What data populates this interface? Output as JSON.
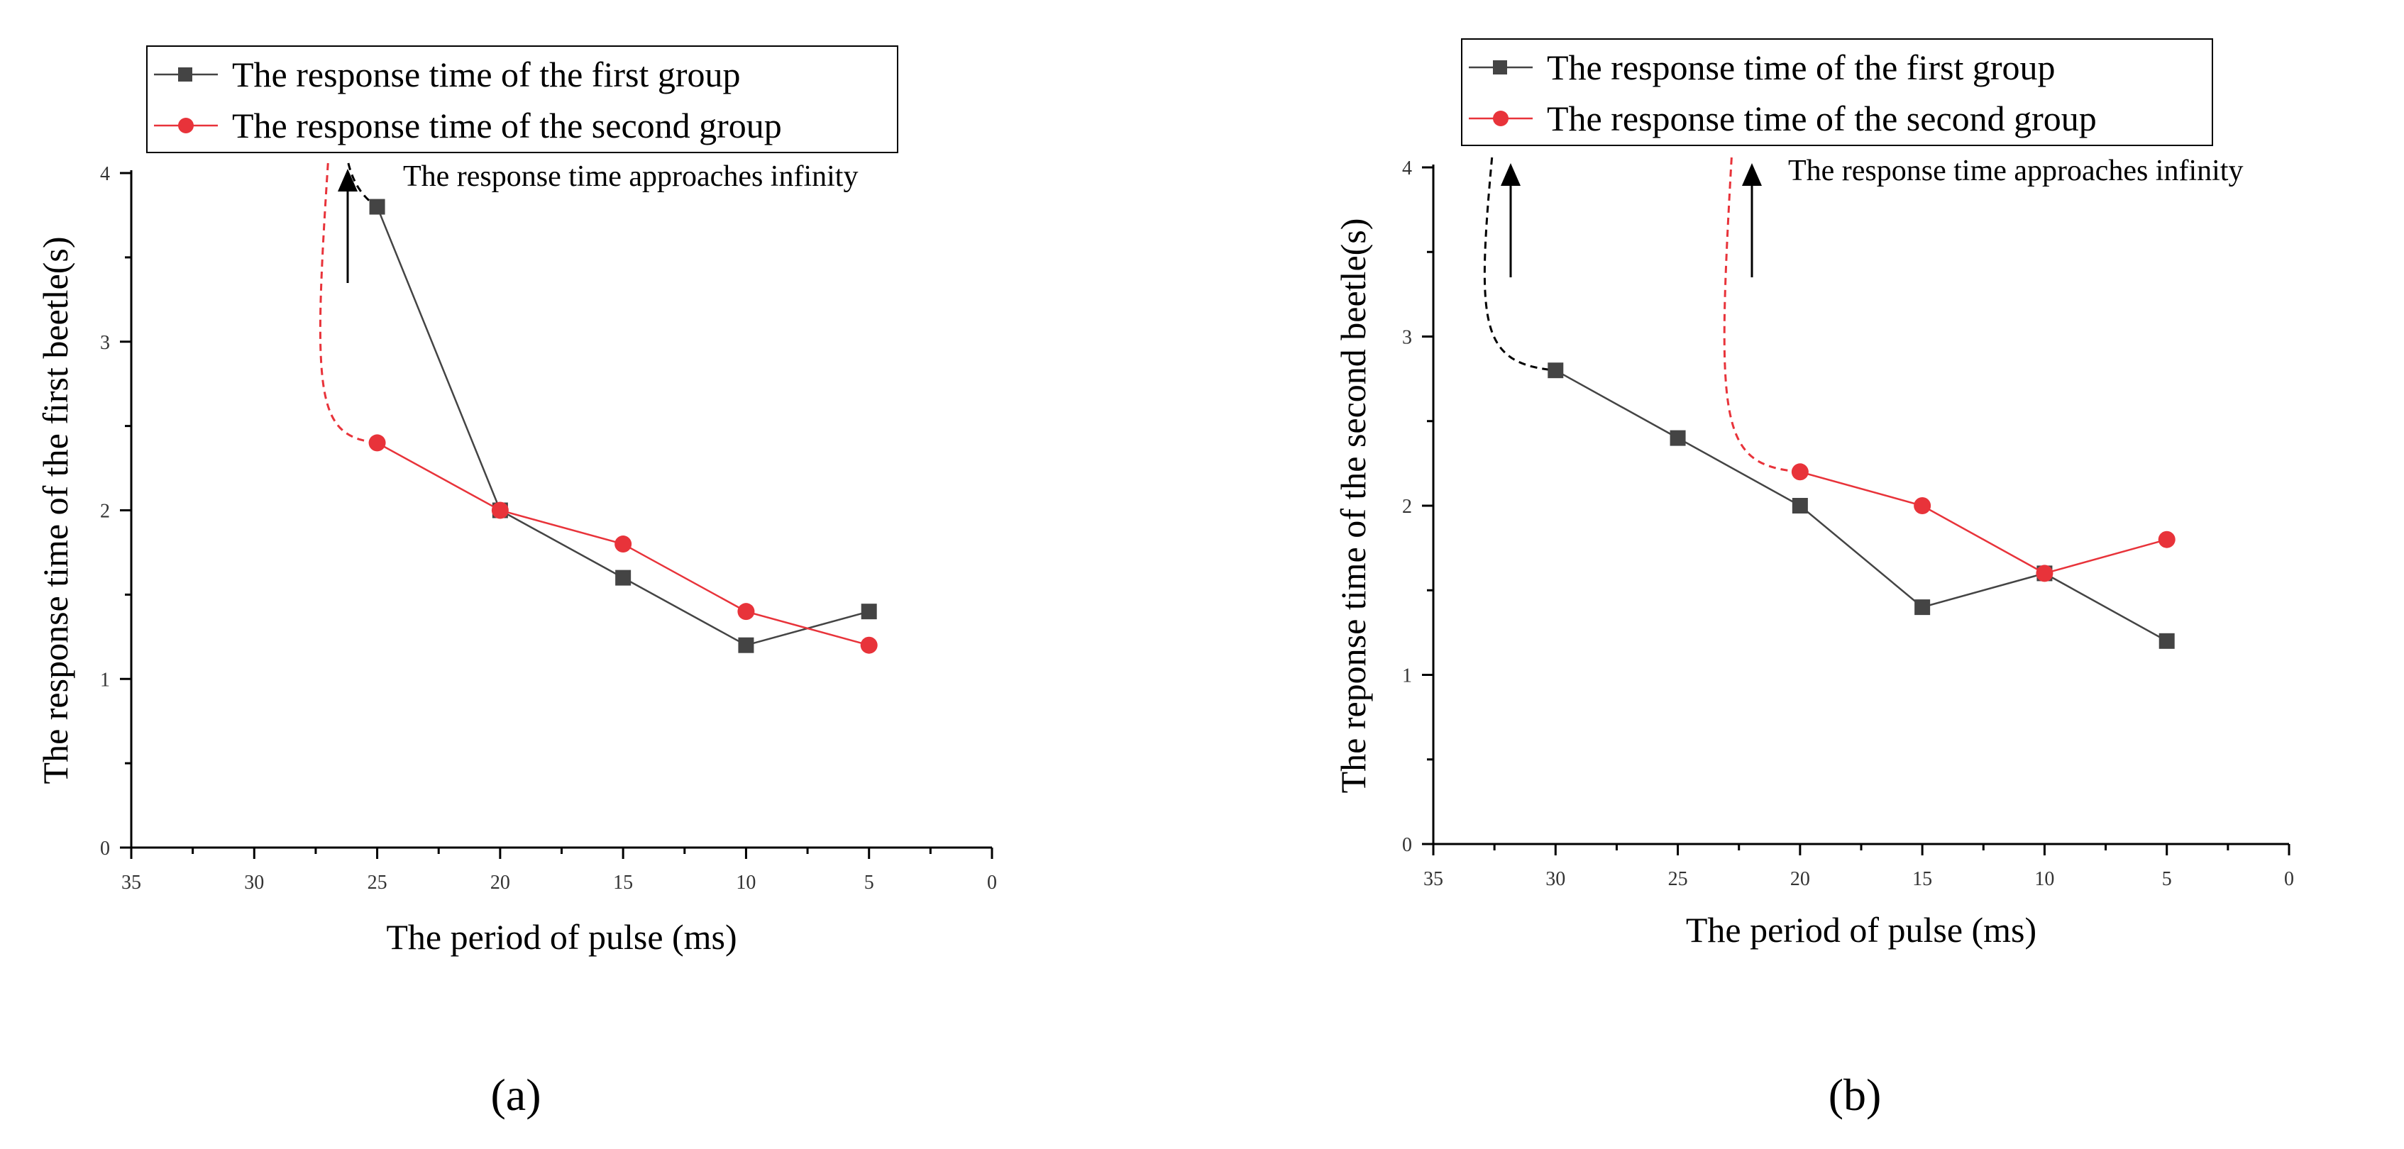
{
  "chart_data": [
    {
      "type": "line",
      "panel_label": "(a)",
      "xlabel": "The period of pulse (ms)",
      "ylabel": "The response time of the first beetle(s)",
      "xlim": [
        35,
        0
      ],
      "ylim": [
        0,
        4
      ],
      "xticks": [
        35,
        30,
        25,
        20,
        15,
        10,
        5,
        0
      ],
      "yticks": [
        0,
        1,
        2,
        3,
        4
      ],
      "legend": [
        "The response time of the first group",
        "The response time of the second group"
      ],
      "annotation": "The response time approaches infinity",
      "series": [
        {
          "name": "The response time of the first group",
          "color": "#444444",
          "marker": "square",
          "x": [
            25,
            20,
            15,
            10,
            5
          ],
          "y": [
            3.8,
            2.0,
            1.6,
            1.2,
            1.4
          ],
          "asymptote_x": 26,
          "asymptote_color": "#000000"
        },
        {
          "name": "The response time of the second group",
          "color": "#e8333a",
          "marker": "circle",
          "x": [
            25,
            20,
            15,
            10,
            5
          ],
          "y": [
            2.4,
            2.0,
            1.8,
            1.4,
            1.2
          ],
          "asymptote_x": 27,
          "asymptote_color": "#e8333a"
        }
      ]
    },
    {
      "type": "line",
      "panel_label": "(b)",
      "xlabel": "The period of pulse (ms)",
      "ylabel": "The reponse time of the second beetle(s)",
      "xlim": [
        35,
        0
      ],
      "ylim": [
        0,
        4
      ],
      "xticks": [
        35,
        30,
        25,
        20,
        15,
        10,
        5,
        0
      ],
      "yticks": [
        0,
        1,
        2,
        3,
        4
      ],
      "legend": [
        "The response time of the first group",
        "The response time of the second group"
      ],
      "annotation": "The response time approaches infinity",
      "series": [
        {
          "name": "The response time of the first group",
          "color": "#444444",
          "marker": "square",
          "x": [
            30,
            25,
            20,
            15,
            10,
            5
          ],
          "y": [
            2.8,
            2.4,
            2.0,
            1.4,
            1.6,
            1.2
          ],
          "asymptote_x": 32.6,
          "asymptote_color": "#000000"
        },
        {
          "name": "The response time of the second group",
          "color": "#e8333a",
          "marker": "circle",
          "x": [
            20,
            15,
            10,
            5
          ],
          "y": [
            2.2,
            2.0,
            1.6,
            1.8
          ],
          "asymptote_x": 22.8,
          "asymptote_color": "#e8333a"
        }
      ]
    }
  ]
}
